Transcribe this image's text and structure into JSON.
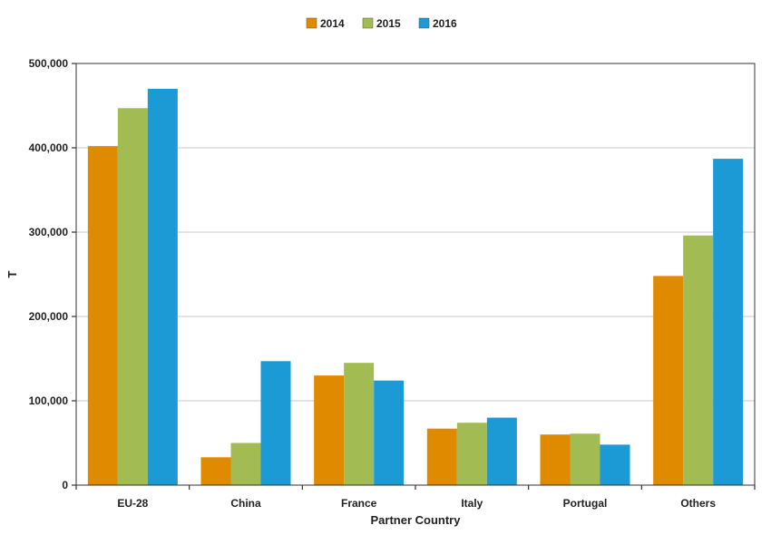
{
  "chart_data": {
    "type": "bar",
    "title": "",
    "xlabel": "Partner Country",
    "ylabel": "T",
    "categories": [
      "EU-28",
      "China",
      "France",
      "Italy",
      "Portugal",
      "Others"
    ],
    "series": [
      {
        "name": "2014",
        "color": "#e08a00",
        "values": [
          402000,
          33000,
          130000,
          67000,
          60000,
          248000
        ]
      },
      {
        "name": "2015",
        "color": "#a3bb53",
        "values": [
          447000,
          50000,
          145000,
          74000,
          61000,
          296000
        ]
      },
      {
        "name": "2016",
        "color": "#1b9ad6",
        "values": [
          470000,
          147000,
          124000,
          80000,
          48000,
          387000
        ]
      }
    ],
    "ylim": [
      0,
      500000
    ],
    "yticks": [
      0,
      100000,
      200000,
      300000,
      400000,
      500000
    ],
    "ytick_labels": [
      "0",
      "100,000",
      "200,000",
      "300,000",
      "400,000",
      "500,000"
    ],
    "grid": true,
    "legend_position": "top-center"
  }
}
